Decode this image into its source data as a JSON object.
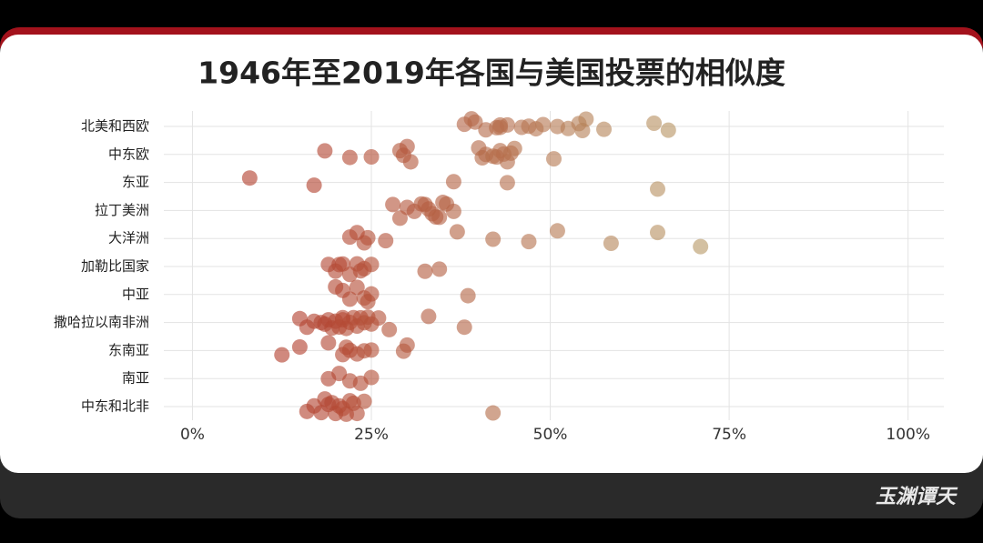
{
  "chart_data": {
    "type": "strip",
    "title": "1946年至2019年各国与美国投票的相似度",
    "categories": [
      "北美和西欧",
      "中东欧",
      "东亚",
      "拉丁美洲",
      "大洋洲",
      "加勒比国家",
      "中亚",
      "撒哈拉以南非洲",
      "东南亚",
      "南亚",
      "中东和北非"
    ],
    "values": [
      [
        38,
        39,
        41,
        43,
        42.5,
        44,
        46,
        47,
        48,
        49,
        51,
        52.5,
        54,
        54.5,
        55,
        57.5,
        64.5,
        66.5,
        39.5,
        43
      ],
      [
        18.5,
        22,
        25,
        29,
        29.5,
        30,
        30.5,
        40,
        40.5,
        41,
        42,
        43,
        43.5,
        44,
        45,
        50.5,
        44.5,
        42.5
      ],
      [
        8,
        17,
        36.5,
        44,
        65
      ],
      [
        28,
        29,
        30,
        31,
        32,
        33,
        34,
        35,
        36.5,
        32.5,
        34.5,
        35.5,
        33.5
      ],
      [
        22,
        24,
        24.5,
        27,
        37,
        42,
        47,
        51,
        58.5,
        65,
        71,
        23
      ],
      [
        19,
        20,
        21,
        22,
        23,
        24,
        25,
        32.5,
        34.5,
        20.5,
        23.5
      ],
      [
        21,
        22,
        23,
        24,
        25,
        38.5,
        20,
        24.5
      ],
      [
        15,
        16,
        17,
        18,
        19,
        19.5,
        20,
        20.5,
        21,
        21.5,
        22,
        22.5,
        23,
        23.5,
        24,
        24.5,
        25,
        26,
        27.5,
        33,
        38,
        18.5,
        21
      ],
      [
        12.5,
        15,
        19,
        21,
        22,
        23,
        25,
        29.5,
        30,
        24,
        21.5
      ],
      [
        19,
        20.5,
        22,
        23.5,
        25
      ],
      [
        16,
        17,
        18,
        19,
        19.5,
        20,
        20.5,
        21,
        22,
        23,
        24,
        42,
        18.5,
        21.5,
        22.5
      ]
    ],
    "xlim": [
      -4,
      105
    ],
    "xticks": [
      {
        "value": 0,
        "label": "0%"
      },
      {
        "value": 25,
        "label": "25%"
      },
      {
        "value": 50,
        "label": "50%"
      },
      {
        "value": 75,
        "label": "75%"
      },
      {
        "value": 100,
        "label": "100%"
      }
    ],
    "colors": [
      "#b3412f",
      "#b89a68"
    ],
    "grid": true,
    "watermark": "玉渊谭天"
  }
}
